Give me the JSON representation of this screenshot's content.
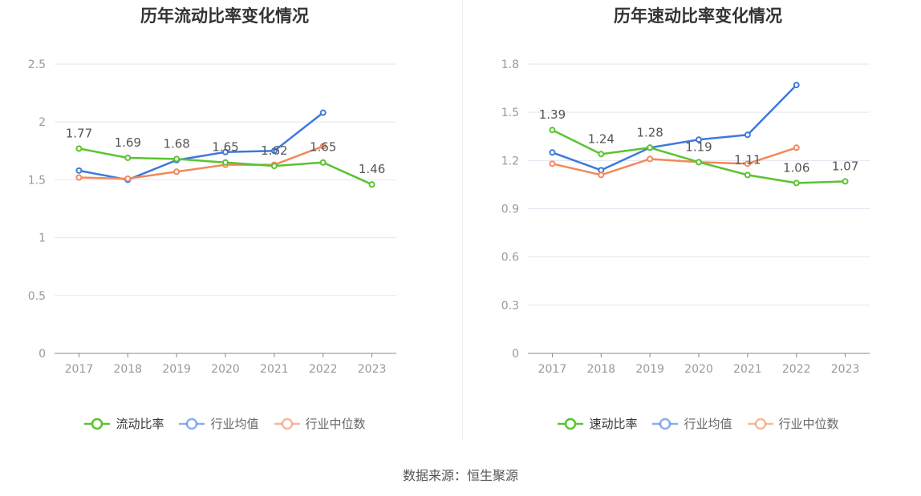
{
  "chart_data": [
    {
      "type": "line",
      "title": "历年流动比率变化情况",
      "categories": [
        "2017",
        "2018",
        "2019",
        "2020",
        "2021",
        "2022",
        "2023"
      ],
      "ylim": [
        0,
        2.5
      ],
      "yticks": [
        "0",
        "0.5",
        "1",
        "1.5",
        "2",
        "2.5"
      ],
      "grid": true,
      "legend_position": "bottom",
      "series": [
        {
          "name": "流动比率",
          "color": "#5ac330",
          "values": [
            1.77,
            1.69,
            1.68,
            1.65,
            1.62,
            1.65,
            1.46
          ],
          "labels": [
            "1.77",
            "1.69",
            "1.68",
            "1.65",
            "1.62",
            "1.65",
            "1.46"
          ]
        },
        {
          "name": "行业均值",
          "color": "#3d79dd",
          "values": [
            1.58,
            1.5,
            1.67,
            1.74,
            1.75,
            2.08,
            null
          ]
        },
        {
          "name": "行业中位数",
          "color": "#f2895a",
          "values": [
            1.52,
            1.51,
            1.57,
            1.63,
            1.63,
            1.79,
            null
          ]
        }
      ]
    },
    {
      "type": "line",
      "title": "历年速动比率变化情况",
      "categories": [
        "2017",
        "2018",
        "2019",
        "2020",
        "2021",
        "2022",
        "2023"
      ],
      "ylim": [
        0,
        1.8
      ],
      "yticks": [
        "0",
        "0.3",
        "0.6",
        "0.9",
        "1.2",
        "1.5",
        "1.8"
      ],
      "grid": true,
      "legend_position": "bottom",
      "series": [
        {
          "name": "速动比率",
          "color": "#5ac330",
          "values": [
            1.39,
            1.24,
            1.28,
            1.19,
            1.11,
            1.06,
            1.07
          ],
          "labels": [
            "1.39",
            "1.24",
            "1.28",
            "1.19",
            "1.11",
            "1.06",
            "1.07"
          ]
        },
        {
          "name": "行业均值",
          "color": "#3d79dd",
          "values": [
            1.25,
            1.14,
            1.28,
            1.33,
            1.36,
            1.67,
            null
          ]
        },
        {
          "name": "行业中位数",
          "color": "#f2895a",
          "values": [
            1.18,
            1.11,
            1.21,
            1.19,
            1.18,
            1.28,
            null
          ]
        }
      ]
    }
  ],
  "source": "数据来源：恒生聚源"
}
